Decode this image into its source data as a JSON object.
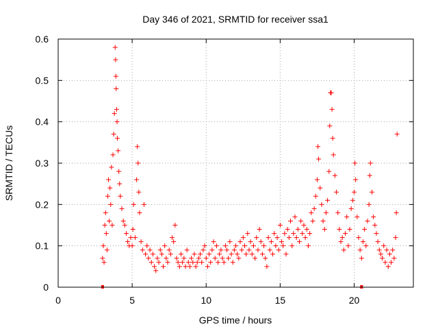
{
  "chart_data": {
    "type": "scatter",
    "title": "Day 346 of 2021, SRMTID for receiver ssa1",
    "xlabel": "GPS time / hours",
    "ylabel": "SRMTID / TECUs",
    "xlim": [
      0,
      24
    ],
    "ylim": [
      0,
      0.6
    ],
    "xticks": [
      0,
      5,
      10,
      15,
      20
    ],
    "yticks": [
      0,
      0.1,
      0.2,
      0.3,
      0.4,
      0.5,
      0.6
    ],
    "xtick_labels": [
      "0",
      "5",
      "10",
      "15",
      "20"
    ],
    "ytick_labels": [
      "0",
      "0.1",
      "0.2",
      "0.3",
      "0.4",
      "0.5",
      "0.6"
    ],
    "grid": true,
    "marker": "+",
    "color": "#ff0000",
    "x_axis_markers": [
      3.0,
      20.5
    ],
    "series": [
      {
        "name": "SRMTID",
        "points": [
          [
            3.0,
            0.07
          ],
          [
            3.05,
            0.1
          ],
          [
            3.1,
            0.06
          ],
          [
            3.15,
            0.15
          ],
          [
            3.2,
            0.18
          ],
          [
            3.25,
            0.13
          ],
          [
            3.3,
            0.09
          ],
          [
            3.35,
            0.22
          ],
          [
            3.4,
            0.26
          ],
          [
            3.45,
            0.16
          ],
          [
            3.5,
            0.24
          ],
          [
            3.55,
            0.2
          ],
          [
            3.6,
            0.29
          ],
          [
            3.65,
            0.15
          ],
          [
            3.7,
            0.32
          ],
          [
            3.75,
            0.37
          ],
          [
            3.8,
            0.42
          ],
          [
            3.85,
            0.58
          ],
          [
            3.88,
            0.55
          ],
          [
            3.9,
            0.51
          ],
          [
            3.92,
            0.48
          ],
          [
            3.95,
            0.43
          ],
          [
            3.98,
            0.4
          ],
          [
            4.0,
            0.36
          ],
          [
            4.05,
            0.33
          ],
          [
            4.1,
            0.28
          ],
          [
            4.15,
            0.25
          ],
          [
            4.2,
            0.22
          ],
          [
            4.3,
            0.19
          ],
          [
            4.4,
            0.16
          ],
          [
            4.5,
            0.15
          ],
          [
            4.6,
            0.13
          ],
          [
            4.7,
            0.11
          ],
          [
            4.8,
            0.1
          ],
          [
            4.9,
            0.12
          ],
          [
            5.0,
            0.1
          ],
          [
            5.05,
            0.14
          ],
          [
            5.1,
            0.2
          ],
          [
            5.2,
            0.12
          ],
          [
            5.3,
            0.26
          ],
          [
            5.35,
            0.34
          ],
          [
            5.4,
            0.3
          ],
          [
            5.45,
            0.23
          ],
          [
            5.5,
            0.18
          ],
          [
            5.6,
            0.11
          ],
          [
            5.7,
            0.09
          ],
          [
            5.8,
            0.2
          ],
          [
            5.9,
            0.08
          ],
          [
            6.0,
            0.1
          ],
          [
            6.1,
            0.07
          ],
          [
            6.2,
            0.09
          ],
          [
            6.3,
            0.06
          ],
          [
            6.4,
            0.08
          ],
          [
            6.5,
            0.05
          ],
          [
            6.6,
            0.04
          ],
          [
            6.7,
            0.07
          ],
          [
            6.8,
            0.06
          ],
          [
            6.9,
            0.09
          ],
          [
            7.0,
            0.08
          ],
          [
            7.1,
            0.05
          ],
          [
            7.2,
            0.1
          ],
          [
            7.3,
            0.07
          ],
          [
            7.4,
            0.06
          ],
          [
            7.5,
            0.09
          ],
          [
            7.6,
            0.08
          ],
          [
            7.7,
            0.12
          ],
          [
            7.8,
            0.11
          ],
          [
            7.9,
            0.15
          ],
          [
            8.0,
            0.07
          ],
          [
            8.1,
            0.06
          ],
          [
            8.2,
            0.05
          ],
          [
            8.3,
            0.08
          ],
          [
            8.4,
            0.06
          ],
          [
            8.5,
            0.07
          ],
          [
            8.6,
            0.05
          ],
          [
            8.7,
            0.09
          ],
          [
            8.8,
            0.06
          ],
          [
            8.9,
            0.05
          ],
          [
            9.0,
            0.07
          ],
          [
            9.1,
            0.06
          ],
          [
            9.2,
            0.08
          ],
          [
            9.3,
            0.05
          ],
          [
            9.4,
            0.06
          ],
          [
            9.5,
            0.07
          ],
          [
            9.6,
            0.08
          ],
          [
            9.7,
            0.06
          ],
          [
            9.8,
            0.09
          ],
          [
            9.9,
            0.1
          ],
          [
            10.0,
            0.07
          ],
          [
            10.1,
            0.05
          ],
          [
            10.2,
            0.08
          ],
          [
            10.3,
            0.06
          ],
          [
            10.4,
            0.09
          ],
          [
            10.5,
            0.11
          ],
          [
            10.6,
            0.07
          ],
          [
            10.7,
            0.1
          ],
          [
            10.8,
            0.06
          ],
          [
            10.9,
            0.08
          ],
          [
            11.0,
            0.09
          ],
          [
            11.1,
            0.07
          ],
          [
            11.2,
            0.06
          ],
          [
            11.3,
            0.1
          ],
          [
            11.4,
            0.09
          ],
          [
            11.5,
            0.07
          ],
          [
            11.6,
            0.11
          ],
          [
            11.7,
            0.08
          ],
          [
            11.8,
            0.06
          ],
          [
            11.9,
            0.09
          ],
          [
            12.0,
            0.1
          ],
          [
            12.1,
            0.08
          ],
          [
            12.2,
            0.07
          ],
          [
            12.3,
            0.11
          ],
          [
            12.4,
            0.09
          ],
          [
            12.5,
            0.12
          ],
          [
            12.6,
            0.1
          ],
          [
            12.7,
            0.08
          ],
          [
            12.8,
            0.13
          ],
          [
            12.9,
            0.09
          ],
          [
            13.0,
            0.11
          ],
          [
            13.1,
            0.08
          ],
          [
            13.2,
            0.1
          ],
          [
            13.3,
            0.07
          ],
          [
            13.4,
            0.12
          ],
          [
            13.5,
            0.09
          ],
          [
            13.6,
            0.14
          ],
          [
            13.7,
            0.11
          ],
          [
            13.8,
            0.08
          ],
          [
            13.9,
            0.1
          ],
          [
            14.0,
            0.07
          ],
          [
            14.1,
            0.05
          ],
          [
            14.2,
            0.12
          ],
          [
            14.3,
            0.09
          ],
          [
            14.4,
            0.11
          ],
          [
            14.5,
            0.08
          ],
          [
            14.6,
            0.13
          ],
          [
            14.7,
            0.1
          ],
          [
            14.8,
            0.12
          ],
          [
            14.9,
            0.09
          ],
          [
            15.0,
            0.15
          ],
          [
            15.1,
            0.11
          ],
          [
            15.2,
            0.1
          ],
          [
            15.3,
            0.13
          ],
          [
            15.4,
            0.08
          ],
          [
            15.5,
            0.14
          ],
          [
            15.6,
            0.12
          ],
          [
            15.7,
            0.16
          ],
          [
            15.8,
            0.1
          ],
          [
            15.9,
            0.13
          ],
          [
            16.0,
            0.17
          ],
          [
            16.1,
            0.12
          ],
          [
            16.2,
            0.14
          ],
          [
            16.3,
            0.11
          ],
          [
            16.4,
            0.16
          ],
          [
            16.5,
            0.13
          ],
          [
            16.6,
            0.15
          ],
          [
            16.7,
            0.12
          ],
          [
            16.8,
            0.14
          ],
          [
            16.9,
            0.1
          ],
          [
            17.0,
            0.13
          ],
          [
            17.1,
            0.18
          ],
          [
            17.2,
            0.16
          ],
          [
            17.3,
            0.19
          ],
          [
            17.4,
            0.22
          ],
          [
            17.5,
            0.26
          ],
          [
            17.55,
            0.34
          ],
          [
            17.6,
            0.31
          ],
          [
            17.7,
            0.24
          ],
          [
            17.8,
            0.2
          ],
          [
            17.9,
            0.16
          ],
          [
            18.0,
            0.14
          ],
          [
            18.1,
            0.18
          ],
          [
            18.2,
            0.21
          ],
          [
            18.3,
            0.28
          ],
          [
            18.35,
            0.39
          ],
          [
            18.4,
            0.47
          ],
          [
            18.45,
            0.47
          ],
          [
            18.5,
            0.43
          ],
          [
            18.55,
            0.36
          ],
          [
            18.6,
            0.32
          ],
          [
            18.7,
            0.27
          ],
          [
            18.8,
            0.23
          ],
          [
            18.9,
            0.18
          ],
          [
            19.0,
            0.14
          ],
          [
            19.1,
            0.11
          ],
          [
            19.2,
            0.12
          ],
          [
            19.3,
            0.09
          ],
          [
            19.4,
            0.13
          ],
          [
            19.5,
            0.17
          ],
          [
            19.6,
            0.1
          ],
          [
            19.7,
            0.14
          ],
          [
            19.8,
            0.19
          ],
          [
            19.9,
            0.21
          ],
          [
            20.0,
            0.23
          ],
          [
            20.05,
            0.3
          ],
          [
            20.1,
            0.26
          ],
          [
            20.2,
            0.17
          ],
          [
            20.3,
            0.12
          ],
          [
            20.4,
            0.09
          ],
          [
            20.5,
            0.07
          ],
          [
            20.6,
            0.11
          ],
          [
            20.7,
            0.14
          ],
          [
            20.8,
            0.1
          ],
          [
            20.9,
            0.16
          ],
          [
            21.0,
            0.2
          ],
          [
            21.05,
            0.27
          ],
          [
            21.1,
            0.3
          ],
          [
            21.2,
            0.23
          ],
          [
            21.3,
            0.17
          ],
          [
            21.4,
            0.15
          ],
          [
            21.5,
            0.13
          ],
          [
            21.6,
            0.11
          ],
          [
            21.7,
            0.09
          ],
          [
            21.8,
            0.08
          ],
          [
            21.9,
            0.07
          ],
          [
            22.0,
            0.1
          ],
          [
            22.1,
            0.06
          ],
          [
            22.2,
            0.09
          ],
          [
            22.3,
            0.05
          ],
          [
            22.4,
            0.08
          ],
          [
            22.5,
            0.06
          ],
          [
            22.6,
            0.09
          ],
          [
            22.7,
            0.07
          ],
          [
            22.8,
            0.12
          ],
          [
            22.85,
            0.18
          ],
          [
            22.9,
            0.37
          ]
        ]
      }
    ]
  }
}
